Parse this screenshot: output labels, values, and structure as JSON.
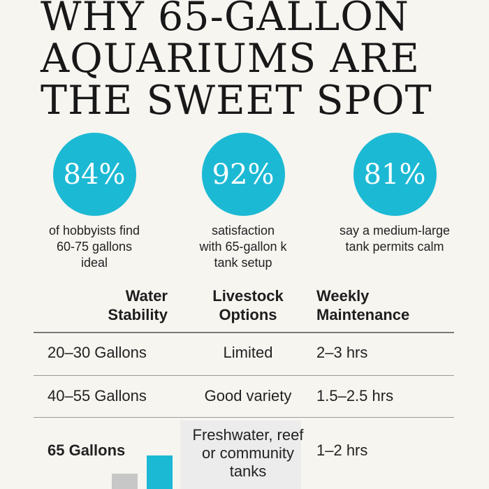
{
  "title": [
    "WHY 65-GALLON",
    "AQUARIUMS ARE",
    "THE SWEET SPOT"
  ],
  "stats": [
    {
      "value": "84%",
      "caption": [
        "of hobbyists find",
        "60-75 gallons",
        "ideal"
      ]
    },
    {
      "value": "92%",
      "caption": [
        "satisfaction",
        "with 65-gallon k",
        "tank setup"
      ]
    },
    {
      "value": "81%",
      "caption": [
        "say a medium-large",
        "tank permits calm"
      ]
    }
  ],
  "table": {
    "headers": [
      [
        "Water",
        "Stability"
      ],
      [
        "Livestock",
        "Options"
      ],
      [
        "Weekly",
        "Maintenance"
      ]
    ],
    "rows": [
      [
        "20–30 Gallons",
        "Limited",
        "2–3 hrs"
      ],
      [
        "40–55 Gallons",
        "Good variety",
        "1.5–2.5 hrs"
      ],
      [
        "65 Gallons",
        [
          "Freshwater, reef",
          "or community",
          "tanks"
        ],
        "1–2 hrs"
      ]
    ]
  },
  "colors": {
    "accent": "#1cb9d4",
    "background": "#f7f5f0",
    "bar_gray": "#c7c7c7"
  }
}
